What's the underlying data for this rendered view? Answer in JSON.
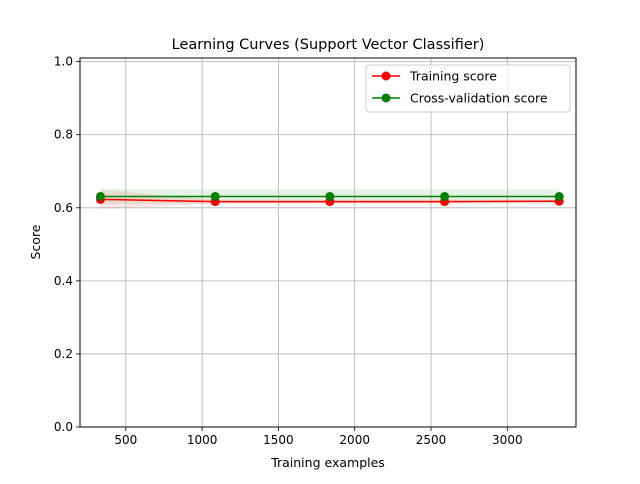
{
  "chart_data": {
    "type": "line",
    "title": "Learning Curves (Support Vector Classifier)",
    "xlabel": "Training examples",
    "ylabel": "Score",
    "xlim": [
      200,
      3450
    ],
    "ylim": [
      0.0,
      1.01
    ],
    "xticks": [
      500,
      1000,
      1500,
      2000,
      2500,
      3000
    ],
    "yticks": [
      0.0,
      0.2,
      0.4,
      0.6,
      0.8,
      1.0
    ],
    "xtick_labels": [
      "500",
      "1000",
      "1500",
      "2000",
      "2500",
      "3000"
    ],
    "ytick_labels": [
      "0.0",
      "0.2",
      "0.4",
      "0.6",
      "0.8",
      "1.0"
    ],
    "grid": true,
    "legend_location": "upper right",
    "x": [
      334,
      1086,
      1837,
      2589,
      3340
    ],
    "series": [
      {
        "name": "Training score",
        "color": "#ff0000",
        "marker": "circle",
        "values": [
          0.623,
          0.617,
          0.617,
          0.617,
          0.618
        ],
        "band_lower": [
          0.597,
          0.612,
          0.612,
          0.612,
          0.614
        ],
        "band_upper": [
          0.649,
          0.622,
          0.622,
          0.622,
          0.622
        ],
        "band_color": "#ff0000"
      },
      {
        "name": "Cross-validation score",
        "color": "#008000",
        "marker": "circle",
        "values": [
          0.631,
          0.631,
          0.631,
          0.631,
          0.631
        ],
        "band_lower": [
          0.611,
          0.611,
          0.611,
          0.611,
          0.611
        ],
        "band_upper": [
          0.651,
          0.651,
          0.651,
          0.651,
          0.651
        ],
        "band_color": "#008000"
      }
    ]
  }
}
